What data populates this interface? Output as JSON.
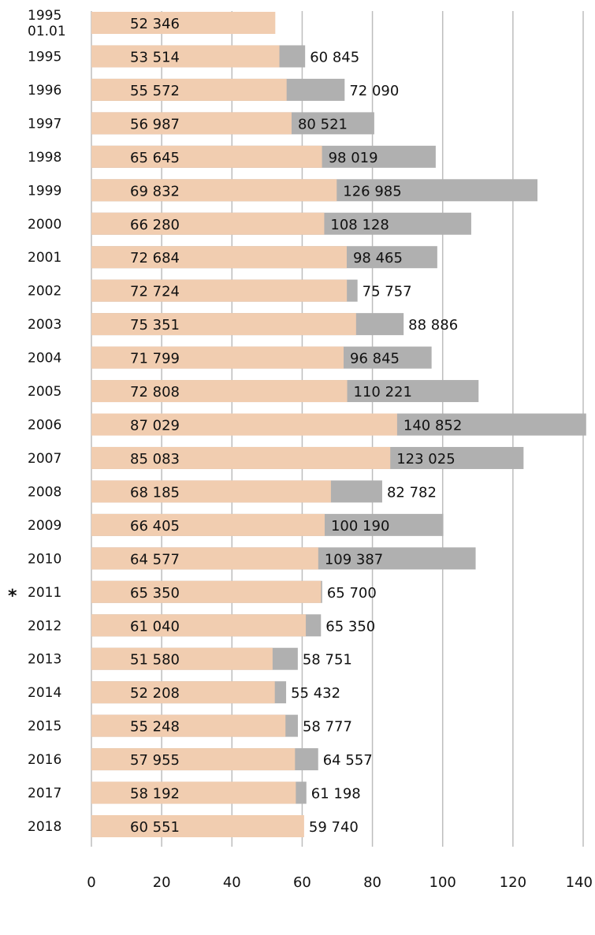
{
  "chart_data": {
    "type": "bar",
    "orientation": "horizontal",
    "categories": [
      "1995\n01.01",
      "1995",
      "1996",
      "1997",
      "1998",
      "1999",
      "2000",
      "2001",
      "2002",
      "2003",
      "2004",
      "2005",
      "2006",
      "2007",
      "2008",
      "2009",
      "2010",
      "2011",
      "2012",
      "2013",
      "2014",
      "2015",
      "2016",
      "2017",
      "2018"
    ],
    "marked_category_symbol": "*",
    "marked_category_index": 17,
    "series": [
      {
        "color": "#f1cdb0",
        "values": [
          52.346,
          53.514,
          55.572,
          56.987,
          65.645,
          69.832,
          66.28,
          72.684,
          72.724,
          75.351,
          71.799,
          72.808,
          87.029,
          85.083,
          68.185,
          66.405,
          64.577,
          65.35,
          61.04,
          51.58,
          52.208,
          55.248,
          57.955,
          58.192,
          60.551
        ],
        "labels": [
          "52 346",
          "53 514",
          "55 572",
          "56 987",
          "65 645",
          "69 832",
          "66 280",
          "72 684",
          "72 724",
          "75 351",
          "71 799",
          "72 808",
          "87 029",
          "85 083",
          "68 185",
          "66 405",
          "64 577",
          "65 350",
          "61 040",
          "51 580",
          "52 208",
          "55 248",
          "57 955",
          "58 192",
          "60 551"
        ]
      },
      {
        "color": "#b0b0b0",
        "values": [
          null,
          60.845,
          72.09,
          80.521,
          98.019,
          126.985,
          108.128,
          98.465,
          75.757,
          88.886,
          96.845,
          110.221,
          140.852,
          123.025,
          82.782,
          100.19,
          109.387,
          65.7,
          65.35,
          58.751,
          55.432,
          58.777,
          64.557,
          61.198,
          59.74
        ],
        "labels": [
          "",
          "60 845",
          "72 090",
          "80 521",
          "98 019",
          "126 985",
          "108 128",
          "98 465",
          "75 757",
          "88 886",
          "96 845",
          "110 221",
          "140 852",
          "123 025",
          "82 782",
          "100 190",
          "109 387",
          "65 700",
          "65 350",
          "58 751",
          "55 432",
          "58 777",
          "64 557",
          "61 198",
          "59 740"
        ]
      }
    ],
    "xlim": [
      0,
      140
    ],
    "xticks": [
      0,
      20,
      40,
      60,
      80,
      100,
      120,
      140
    ],
    "xtick_labels": [
      "0",
      "20",
      "40",
      "60",
      "80",
      "100",
      "120",
      "140"
    ],
    "grid": "vertical",
    "title": "",
    "xlabel": "",
    "ylabel": ""
  }
}
